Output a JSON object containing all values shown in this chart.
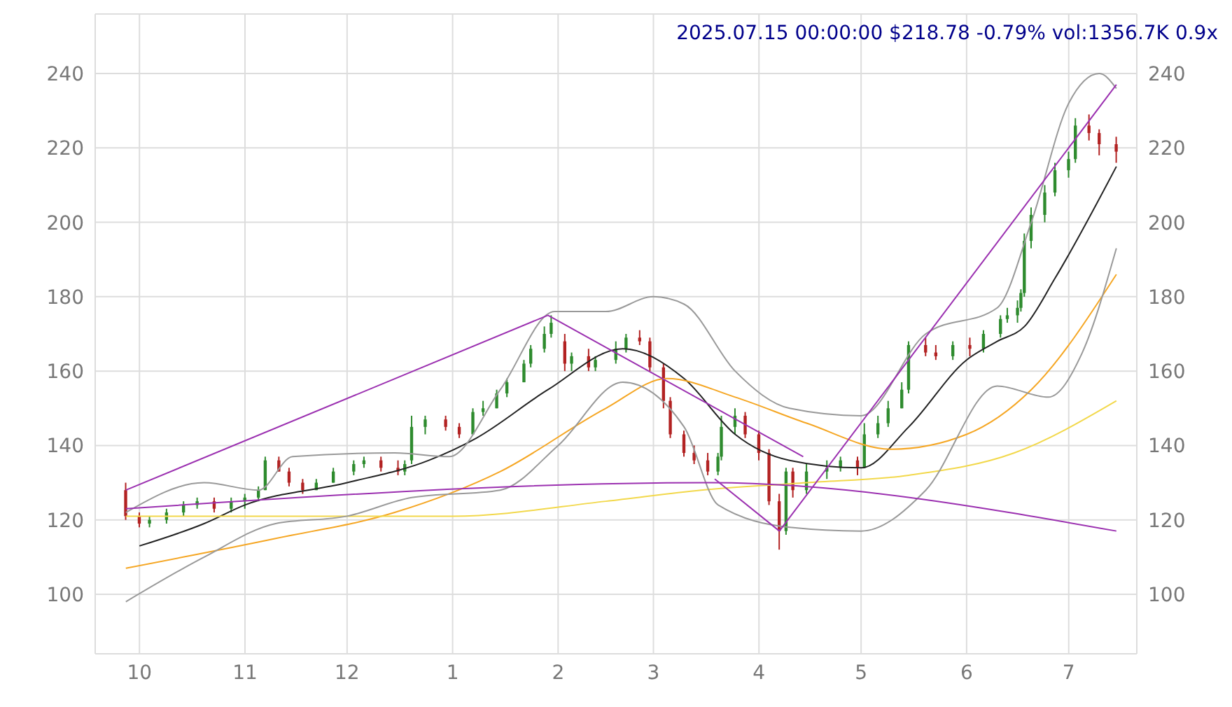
{
  "chart_data": {
    "type": "candlestick",
    "title": "2025.07.15 00:00:00 $218.78 -0.79% vol:1356.7K 0.9x",
    "x": [
      "2024-09-27",
      "2024-10-01",
      "2024-10-04",
      "2024-10-09",
      "2024-10-14",
      "2024-10-18",
      "2024-10-23",
      "2024-10-28",
      "2024-11-01",
      "2024-11-05",
      "2024-11-07",
      "2024-11-11",
      "2024-11-14",
      "2024-11-18",
      "2024-11-22",
      "2024-11-27",
      "2024-12-03",
      "2024-12-06",
      "2024-12-11",
      "2024-12-16",
      "2024-12-18",
      "2024-12-20",
      "2024-12-24",
      "2024-12-30",
      "2025-01-03",
      "2025-01-07",
      "2025-01-10",
      "2025-01-14",
      "2025-01-17",
      "2025-01-22",
      "2025-01-24",
      "2025-01-28",
      "2025-01-30",
      "2025-02-03",
      "2025-02-05",
      "2025-02-10",
      "2025-02-12",
      "2025-02-18",
      "2025-02-21",
      "2025-02-25",
      "2025-02-28",
      "2025-03-04",
      "2025-03-06",
      "2025-03-10",
      "2025-03-13",
      "2025-03-17",
      "2025-03-20",
      "2025-03-21",
      "2025-03-25",
      "2025-03-28",
      "2025-04-01",
      "2025-04-04",
      "2025-04-07",
      "2025-04-09",
      "2025-04-11",
      "2025-04-15",
      "2025-04-21",
      "2025-04-25",
      "2025-04-30",
      "2025-05-02",
      "2025-05-06",
      "2025-05-09",
      "2025-05-13",
      "2025-05-15",
      "2025-05-20",
      "2025-05-23",
      "2025-05-28",
      "2025-06-02",
      "2025-06-06",
      "2025-06-11",
      "2025-06-13",
      "2025-06-16",
      "2025-06-17",
      "2025-06-18",
      "2025-06-20",
      "2025-06-24",
      "2025-06-27",
      "2025-07-01",
      "2025-07-03",
      "2025-07-07",
      "2025-07-10",
      "2025-07-15"
    ],
    "ohlc": [
      [
        128,
        130,
        120,
        121
      ],
      [
        121,
        122,
        118,
        119
      ],
      [
        119,
        121,
        118,
        120
      ],
      [
        120,
        123,
        119,
        122
      ],
      [
        122,
        125,
        121,
        124
      ],
      [
        124,
        126,
        123,
        125
      ],
      [
        125,
        126,
        122,
        123
      ],
      [
        123,
        126,
        122,
        125
      ],
      [
        125,
        127,
        123,
        126
      ],
      [
        126,
        129,
        125,
        128
      ],
      [
        128,
        137,
        128,
        136
      ],
      [
        136,
        137,
        133,
        133
      ],
      [
        133,
        134,
        129,
        130
      ],
      [
        130,
        131,
        127,
        128
      ],
      [
        128,
        131,
        128,
        130
      ],
      [
        130,
        134,
        130,
        133
      ],
      [
        133,
        136,
        132,
        135
      ],
      [
        135,
        137,
        134,
        136
      ],
      [
        136,
        137,
        133,
        134
      ],
      [
        134,
        136,
        132,
        133
      ],
      [
        133,
        136,
        132,
        135
      ],
      [
        136,
        148,
        135,
        145
      ],
      [
        145,
        148,
        143,
        147
      ],
      [
        147,
        148,
        144,
        145
      ],
      [
        145,
        146,
        142,
        143
      ],
      [
        143,
        150,
        143,
        149
      ],
      [
        149,
        152,
        148,
        150
      ],
      [
        150,
        155,
        150,
        154
      ],
      [
        154,
        158,
        153,
        157
      ],
      [
        157,
        163,
        157,
        162
      ],
      [
        162,
        167,
        161,
        166
      ],
      [
        166,
        172,
        165,
        170
      ],
      [
        170,
        175,
        169,
        173
      ],
      [
        168,
        170,
        160,
        162
      ],
      [
        162,
        165,
        160,
        164
      ],
      [
        164,
        166,
        160,
        161
      ],
      [
        161,
        164,
        160,
        163
      ],
      [
        163,
        168,
        162,
        166
      ],
      [
        166,
        170,
        165,
        169
      ],
      [
        169,
        171,
        167,
        168
      ],
      [
        168,
        169,
        160,
        161
      ],
      [
        161,
        162,
        150,
        152
      ],
      [
        152,
        153,
        142,
        143
      ],
      [
        143,
        144,
        137,
        138
      ],
      [
        138,
        140,
        135,
        136
      ],
      [
        136,
        138,
        132,
        133
      ],
      [
        133,
        138,
        132,
        137
      ],
      [
        137,
        148,
        136,
        145
      ],
      [
        145,
        150,
        143,
        148
      ],
      [
        148,
        149,
        142,
        143
      ],
      [
        143,
        144,
        136,
        138
      ],
      [
        138,
        139,
        124,
        125
      ],
      [
        125,
        127,
        112,
        117
      ],
      [
        117,
        134,
        116,
        133
      ],
      [
        133,
        134,
        126,
        128
      ],
      [
        128,
        135,
        127,
        133
      ],
      [
        133,
        136,
        131,
        134
      ],
      [
        134,
        137,
        133,
        136
      ],
      [
        136,
        137,
        132,
        134
      ],
      [
        134,
        146,
        134,
        143
      ],
      [
        143,
        148,
        142,
        146
      ],
      [
        146,
        152,
        145,
        150
      ],
      [
        150,
        157,
        150,
        155
      ],
      [
        155,
        168,
        154,
        167
      ],
      [
        167,
        169,
        164,
        165
      ],
      [
        165,
        167,
        163,
        164
      ],
      [
        164,
        168,
        163,
        167
      ],
      [
        167,
        169,
        164,
        166
      ],
      [
        166,
        171,
        165,
        170
      ],
      [
        170,
        175,
        169,
        174
      ],
      [
        174,
        177,
        173,
        175
      ],
      [
        175,
        179,
        173,
        177
      ],
      [
        177,
        182,
        176,
        181
      ],
      [
        181,
        197,
        180,
        195
      ],
      [
        195,
        204,
        193,
        202
      ],
      [
        202,
        210,
        200,
        208
      ],
      [
        208,
        216,
        207,
        214
      ],
      [
        214,
        219,
        212,
        217
      ],
      [
        217,
        228,
        216,
        226
      ],
      [
        226,
        229,
        222,
        224
      ],
      [
        224,
        225,
        218,
        221
      ],
      [
        221,
        223,
        216,
        219
      ]
    ],
    "series": [
      {
        "type": "line",
        "color": "#222222",
        "x": [
          "2024-10-01",
          "2024-10-20",
          "2024-11-01",
          "2024-12-01",
          "2024-12-25",
          "2025-01-08",
          "2025-01-29",
          "2025-02-20",
          "2025-03-10",
          "2025-03-25",
          "2025-04-10",
          "2025-05-01",
          "2025-05-15",
          "2025-06-01",
          "2025-06-10",
          "2025-06-18",
          "2025-06-27",
          "2025-07-15"
        ],
        "values": [
          113,
          119,
          124,
          130,
          136,
          142,
          155,
          166,
          158,
          143,
          136,
          134,
          145,
          163,
          168,
          172,
          185,
          215
        ]
      },
      {
        "type": "line",
        "color": "#f5a623",
        "x": [
          "2024-09-27",
          "2024-11-10",
          "2024-12-15",
          "2025-01-15",
          "2025-02-15",
          "2025-03-05",
          "2025-03-25",
          "2025-04-15",
          "2025-05-10",
          "2025-06-01",
          "2025-06-20",
          "2025-07-15"
        ],
        "values": [
          107,
          115,
          122,
          133,
          150,
          158,
          153,
          146,
          139,
          143,
          155,
          186
        ]
      },
      {
        "type": "line",
        "color": "#f2d84b",
        "x": [
          "2024-09-27",
          "2024-11-01",
          "2025-01-01",
          "2025-02-15",
          "2025-03-15",
          "2025-04-15",
          "2025-05-15",
          "2025-06-15",
          "2025-07-15"
        ],
        "values": [
          121,
          121,
          121,
          125,
          128,
          130,
          132,
          138,
          152
        ]
      },
      {
        "type": "line",
        "color": "#999999",
        "x": [
          "2024-09-27",
          "2024-10-20",
          "2024-11-05",
          "2024-11-15",
          "2024-12-15",
          "2024-12-31",
          "2025-01-15",
          "2025-01-31",
          "2025-02-15",
          "2025-03-01",
          "2025-03-10",
          "2025-03-25",
          "2025-04-10",
          "2025-05-01",
          "2025-05-20",
          "2025-06-10",
          "2025-06-20",
          "2025-07-01",
          "2025-07-10",
          "2025-07-15"
        ],
        "values": [
          122,
          130,
          128,
          137,
          138,
          137,
          155,
          176,
          176,
          180,
          178,
          160,
          150,
          148,
          170,
          177,
          200,
          232,
          240,
          236
        ]
      },
      {
        "type": "line",
        "color": "#999999",
        "x": [
          "2024-09-27",
          "2024-10-20",
          "2024-11-10",
          "2024-12-01",
          "2024-12-20",
          "2025-01-15",
          "2025-02-01",
          "2025-02-20",
          "2025-03-10",
          "2025-03-20",
          "2025-04-10",
          "2025-05-01",
          "2025-05-20",
          "2025-06-10",
          "2025-06-25",
          "2025-07-05",
          "2025-07-15"
        ],
        "values": [
          98,
          110,
          119,
          121,
          126,
          128,
          140,
          157,
          145,
          124,
          118,
          117,
          128,
          156,
          153,
          165,
          193
        ]
      },
      {
        "type": "line",
        "color": "#9b30b0",
        "x": [
          "2024-09-27",
          "2025-01-29"
        ],
        "values": [
          128,
          175
        ]
      },
      {
        "type": "line",
        "color": "#9b30b0",
        "x": [
          "2025-01-29",
          "2025-04-14"
        ],
        "values": [
          175,
          137
        ]
      },
      {
        "type": "line",
        "color": "#9b30b0",
        "x": [
          "2025-03-19",
          "2025-04-07"
        ],
        "values": [
          131,
          117
        ]
      },
      {
        "type": "line",
        "color": "#9b30b0",
        "x": [
          "2024-09-27",
          "2025-03-17",
          "2025-07-15"
        ],
        "values": [
          123,
          130,
          117
        ]
      },
      {
        "type": "line",
        "color": "#9b30b0",
        "x": [
          "2025-04-07",
          "2025-07-15"
        ],
        "values": [
          117,
          237
        ]
      }
    ],
    "xlim": [
      "2024-09-18",
      "2025-07-21"
    ],
    "xticks": [
      {
        "value": "2024-10-01",
        "label": "10"
      },
      {
        "value": "2024-11-01",
        "label": "11"
      },
      {
        "value": "2024-12-01",
        "label": "12"
      },
      {
        "value": "2025-01-01",
        "label": "1"
      },
      {
        "value": "2025-02-01",
        "label": "2"
      },
      {
        "value": "2025-03-01",
        "label": "3"
      },
      {
        "value": "2025-04-01",
        "label": "4"
      },
      {
        "value": "2025-05-01",
        "label": "5"
      },
      {
        "value": "2025-06-01",
        "label": "6"
      },
      {
        "value": "2025-07-01",
        "label": "7"
      }
    ],
    "ylim": [
      84,
      256
    ],
    "yticks": [
      100,
      120,
      140,
      160,
      180,
      200,
      220,
      240
    ],
    "y2lim": [
      84,
      256
    ],
    "y2ticks": [
      100,
      120,
      140,
      160,
      180,
      200,
      220,
      240
    ],
    "grid": true
  }
}
